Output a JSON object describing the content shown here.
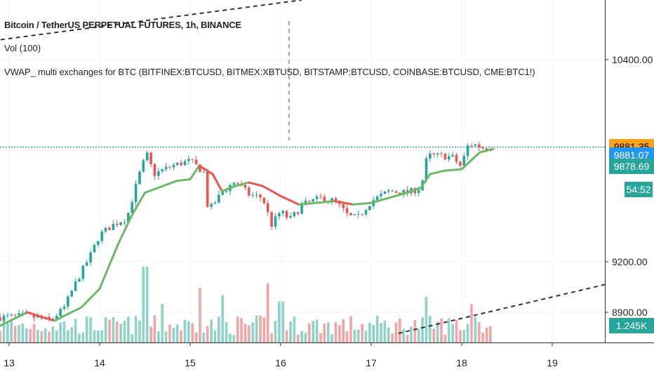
{
  "legend": {
    "symbol": "Bitcoin / TetherUS PERPETUAL FUTURES, 1h, BINANCE",
    "volume": "Vol (100)",
    "indicator": "VWAP_ multi exchanges for BTC (BITFINEX:BTCUSD, BITMEX:XBTUSD, BITSTAMP:BTCUSD, COINBASE:BTCUSD, CME:BTC1!)"
  },
  "price_badges": [
    {
      "label": "9881.35",
      "price": 9881.35,
      "bg": "#f7a21b",
      "fg": "#000000"
    },
    {
      "label": "9881.07",
      "price": 9835,
      "bg": "#2196f3",
      "fg": "#ffffff"
    },
    {
      "label": "9878.69",
      "price": 9765,
      "bg": "#26a69a",
      "fg": "#ffffff"
    },
    {
      "label": "54:52",
      "price": 9630,
      "bg": "#26a69a",
      "fg": "#ffffff"
    },
    {
      "label": "1.245K",
      "price": 8820,
      "bg": "#26a69a",
      "fg": "#ffffff"
    }
  ],
  "chart_data": {
    "type": "candlestick",
    "y_ticks": [
      {
        "value": 10400,
        "label": "10400.00"
      },
      {
        "value": 9200,
        "label": "9200.00"
      },
      {
        "value": 8900,
        "label": "8900.00"
      }
    ],
    "x_ticks": [
      {
        "value": 13,
        "label": "13"
      },
      {
        "value": 14,
        "label": "14"
      },
      {
        "value": 15,
        "label": "15"
      },
      {
        "value": 16,
        "label": "16"
      },
      {
        "value": 17,
        "label": "17"
      },
      {
        "value": 18,
        "label": "18"
      },
      {
        "value": 19,
        "label": "19"
      }
    ],
    "current_price": 9881.35,
    "price_keypoints": [
      [
        12.9,
        8870
      ],
      [
        13.2,
        8880
      ],
      [
        13.45,
        8850
      ],
      [
        13.6,
        8920
      ],
      [
        13.75,
        9090
      ],
      [
        13.9,
        9240
      ],
      [
        14.0,
        9360
      ],
      [
        14.15,
        9420
      ],
      [
        14.3,
        9460
      ],
      [
        14.45,
        9740
      ],
      [
        14.52,
        9840
      ],
      [
        14.6,
        9720
      ],
      [
        14.8,
        9770
      ],
      [
        15.0,
        9800
      ],
      [
        15.15,
        9730
      ],
      [
        15.2,
        9500
      ],
      [
        15.35,
        9610
      ],
      [
        15.5,
        9680
      ],
      [
        15.65,
        9600
      ],
      [
        15.8,
        9580
      ],
      [
        15.9,
        9420
      ],
      [
        16.0,
        9500
      ],
      [
        16.1,
        9450
      ],
      [
        16.25,
        9540
      ],
      [
        16.45,
        9580
      ],
      [
        16.6,
        9560
      ],
      [
        16.75,
        9470
      ],
      [
        16.85,
        9460
      ],
      [
        17.0,
        9560
      ],
      [
        17.2,
        9620
      ],
      [
        17.4,
        9610
      ],
      [
        17.55,
        9640
      ],
      [
        17.62,
        9830
      ],
      [
        17.75,
        9830
      ],
      [
        17.9,
        9820
      ],
      [
        18.0,
        9760
      ],
      [
        18.05,
        9880
      ],
      [
        18.12,
        9900
      ],
      [
        18.25,
        9875
      ],
      [
        18.35,
        9880
      ]
    ],
    "vwap_keypoints": [
      [
        12.9,
        8820
      ],
      [
        13.2,
        8900
      ],
      [
        13.5,
        8850
      ],
      [
        13.8,
        8930
      ],
      [
        14.0,
        9040
      ],
      [
        14.2,
        9300
      ],
      [
        14.35,
        9470
      ],
      [
        14.5,
        9610
      ],
      [
        14.7,
        9650
      ],
      [
        14.85,
        9680
      ],
      [
        15.0,
        9690
      ],
      [
        15.1,
        9770
      ],
      [
        15.25,
        9720
      ],
      [
        15.35,
        9620
      ],
      [
        15.5,
        9650
      ],
      [
        15.65,
        9670
      ],
      [
        15.8,
        9650
      ],
      [
        15.9,
        9620
      ],
      [
        16.0,
        9590
      ],
      [
        16.2,
        9540
      ],
      [
        16.4,
        9550
      ],
      [
        16.6,
        9560
      ],
      [
        16.8,
        9540
      ],
      [
        17.0,
        9550
      ],
      [
        17.2,
        9580
      ],
      [
        17.4,
        9610
      ],
      [
        17.55,
        9640
      ],
      [
        17.65,
        9720
      ],
      [
        17.8,
        9740
      ],
      [
        18.0,
        9750
      ],
      [
        18.1,
        9800
      ],
      [
        18.2,
        9850
      ],
      [
        18.35,
        9870
      ]
    ],
    "volume_spikes": [
      [
        14.1,
        0.25
      ],
      [
        14.5,
        0.83
      ],
      [
        14.7,
        0.42
      ],
      [
        15.1,
        0.6
      ],
      [
        15.35,
        0.52
      ],
      [
        15.85,
        0.65
      ],
      [
        16.0,
        0.45
      ],
      [
        17.6,
        0.5
      ],
      [
        18.1,
        0.42
      ],
      [
        18.15,
        0.28
      ]
    ],
    "trendline_lower": [
      [
        17.3,
        8775
      ],
      [
        19.7,
        9080
      ]
    ]
  },
  "colors": {
    "up": "#26a69a",
    "down": "#ef5350",
    "vwap_up": "#6bb866",
    "vwap_down": "#ef5350",
    "vol_up": "#8fd3c8",
    "vol_down": "#f4a4a4"
  }
}
